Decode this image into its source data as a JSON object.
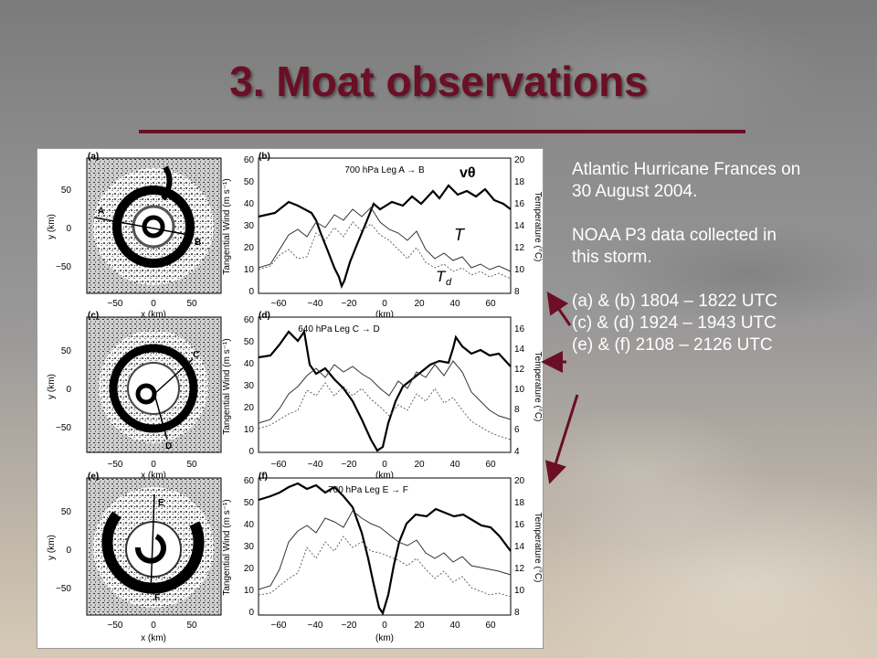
{
  "slide": {
    "title": "3. Moat observations",
    "description": {
      "line1": "Atlantic Hurricane Frances on",
      "line2": "30 August 2004.",
      "line3": "NOAA P3 data collected in",
      "line4": "this storm.",
      "item_a": "(a) & (b) 1804 – 1822 UTC",
      "item_c": "(c) & (d) 1924 – 1943 UTC",
      "item_e": "(e) & (f) 2108 – 2126 UTC"
    },
    "accent_color": "#6a0f25"
  },
  "figure": {
    "panel_labels": [
      "(a)",
      "(b)",
      "(c)",
      "(d)",
      "(e)",
      "(f)"
    ],
    "leg_titles": [
      "700 hPa Leg A → B",
      "640 hPa Leg C → D",
      "700 hPa Leg E → F"
    ],
    "map_xlabel": "x (km)",
    "map_ylabel": "y (km)",
    "map_xticks": [
      "−50",
      "0",
      "50"
    ],
    "map_yticks": [
      "50",
      "0",
      "−50"
    ],
    "leg_points": [
      [
        "A",
        "B"
      ],
      [
        "C",
        "D"
      ],
      [
        "E",
        "F"
      ]
    ],
    "plot_xlabel": "(km)",
    "plot_xticks": [
      "−60",
      "−40",
      "−20",
      "0",
      "20",
      "40",
      "60"
    ],
    "wind_ylabel": "Tangential Wind  (m s⁻¹)",
    "temp_ylabel": "Temperature  (°C)",
    "wind_yticks": [
      "0",
      "10",
      "20",
      "30",
      "40",
      "50",
      "60"
    ],
    "temp_yticks_b": [
      "8",
      "10",
      "12",
      "14",
      "16",
      "18",
      "20"
    ],
    "temp_yticks_d": [
      "4",
      "6",
      "8",
      "10",
      "12",
      "14",
      "16"
    ],
    "temp_yticks_f": [
      "8",
      "10",
      "12",
      "14",
      "16",
      "18",
      "20"
    ],
    "annotations": {
      "vtheta": "vθ",
      "T": "T",
      "Td_main": "T",
      "Td_sub": "d"
    }
  }
}
